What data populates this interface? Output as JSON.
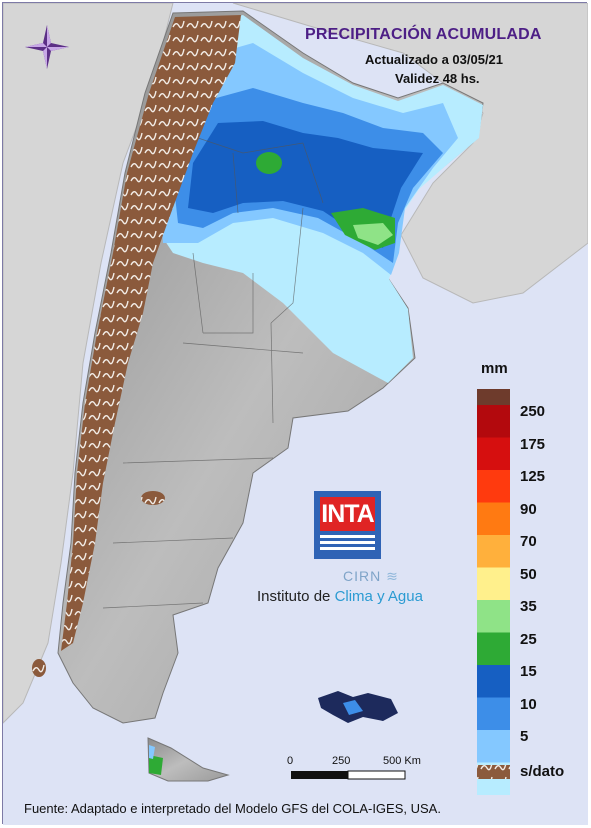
{
  "map": {
    "title": "PRECIPITACIÓN ACUMULADA",
    "updated": "Actualizado a 03/05/21",
    "validity": "Validez 48 hs.",
    "footer": "Fuente: Adaptado e interpretado del Modelo GFS del COLA-IGES, USA."
  },
  "legend": {
    "unit": "mm",
    "classes": [
      {
        "label": "250",
        "color": "#b3090d"
      },
      {
        "label": "175",
        "color": "#d60f0f"
      },
      {
        "label": "125",
        "color": "#ff3a0e"
      },
      {
        "label": "90",
        "color": "#ff7a12"
      },
      {
        "label": "70",
        "color": "#ffb03c"
      },
      {
        "label": "50",
        "color": "#fff08c"
      },
      {
        "label": "35",
        "color": "#8fe387"
      },
      {
        "label": "25",
        "color": "#2eaa35"
      },
      {
        "label": "15",
        "color": "#165fc2"
      },
      {
        "label": "10",
        "color": "#3d8ee8"
      },
      {
        "label": "5",
        "color": "#84c8ff"
      },
      {
        "label": "",
        "color": "#b7ecff"
      }
    ],
    "top_color": "#6e3b2c",
    "nodata_label": "s/dato",
    "nodata_color": "#8b5a3c"
  },
  "scale_bar": {
    "labels": [
      "0",
      "250",
      "500 Km"
    ]
  },
  "logo": {
    "inta": "INTA",
    "cirn": "CIRN",
    "institute_prefix": "Instituto de ",
    "institute_highlight": "Clima y Agua"
  },
  "colors": {
    "neighbor_land": "#d6d6d6",
    "ocean": "#dde3f5",
    "title": "#4d1f86",
    "terrain": "#a9a9a9"
  },
  "icons": [
    "compass-rose-icon",
    "wave-icon"
  ]
}
